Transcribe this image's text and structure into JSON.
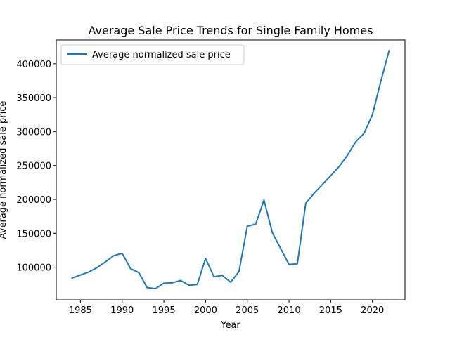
{
  "chart_data": {
    "type": "line",
    "title": "Average Sale Price Trends for Single Family Homes",
    "xlabel": "Year",
    "ylabel": "Average normalized sale price",
    "xlim": [
      1982.1,
      2023.9
    ],
    "ylim": [
      52000,
      435000
    ],
    "xticks": [
      1985,
      1990,
      1995,
      2000,
      2005,
      2010,
      2015,
      2020
    ],
    "yticks": [
      100000,
      150000,
      200000,
      250000,
      300000,
      350000,
      400000
    ],
    "legend_position": "top-left",
    "grid": false,
    "series": [
      {
        "name": "Average normalized sale price",
        "color": "#1f77b4",
        "x": [
          1984,
          1985,
          1986,
          1987,
          1988,
          1989,
          1990,
          1991,
          1992,
          1993,
          1994,
          1995,
          1996,
          1997,
          1998,
          1999,
          2000,
          2001,
          2002,
          2003,
          2004,
          2005,
          2006,
          2007,
          2008,
          2009,
          2010,
          2011,
          2012,
          2013,
          2014,
          2015,
          2016,
          2017,
          2018,
          2019,
          2020,
          2021,
          2022
        ],
        "values": [
          84000,
          88500,
          93000,
          99500,
          108000,
          117000,
          120500,
          98000,
          92000,
          70000,
          68500,
          76500,
          77000,
          80500,
          73500,
          74500,
          113000,
          86000,
          88000,
          78000,
          93500,
          160500,
          163500,
          199000,
          151000,
          127500,
          104000,
          105000,
          194000,
          209000,
          222000,
          235000,
          248500,
          265000,
          285000,
          297500,
          325000,
          374000,
          419500
        ]
      }
    ]
  }
}
